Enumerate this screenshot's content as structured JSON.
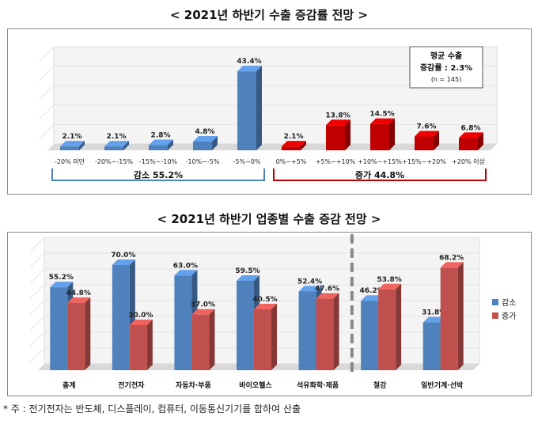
{
  "chart1_title": "< 2021년 하반기 수출 증감률 전망 >",
  "chart2_title": "< 2021년 하반기 업종별 수출 증감 전망 >",
  "note": "* 주 : 전기전자는 반도체, 디스플레이, 컴퓨터, 이동통신기기를 합하여 산출",
  "colors": {
    "blue": "#4F81BD",
    "red": "#C00000",
    "red2": "#C0504D",
    "bracket_blue": "#4F81BD",
    "bracket_red": "#C00000"
  },
  "chart_data": [
    {
      "type": "bar",
      "categories": [
        "-20% 미만",
        "-20%~-15%",
        "-15%~-10%",
        "-10%~-5%",
        "-5%~0%",
        "0%~+5%",
        "+5%~+10%",
        "+10%~+15%",
        "+15%~+20%",
        "+20% 이상"
      ],
      "values": [
        2.1,
        2.1,
        2.8,
        4.8,
        43.4,
        2.1,
        13.8,
        14.5,
        7.6,
        6.8
      ],
      "data_labels": [
        "2.1%",
        "2.1%",
        "2.8%",
        "4.8%",
        "43.4%",
        "2.1%",
        "13.8%",
        "14.5%",
        "7.6%",
        "6.8%"
      ],
      "bar_colors": [
        "blue",
        "blue",
        "blue",
        "blue",
        "blue",
        "red",
        "red",
        "red",
        "red",
        "red"
      ],
      "ylim": [
        0,
        50
      ],
      "groups": [
        {
          "label": "감소 55.2%",
          "from": 0,
          "to": 4,
          "color": "blue"
        },
        {
          "label": "증가 44.8%",
          "from": 5,
          "to": 9,
          "color": "red"
        }
      ],
      "annotation": [
        "평균 수출",
        "증감률 : 2.3%",
        "(n = 145)"
      ],
      "grid": true
    },
    {
      "type": "bar",
      "categories": [
        "총계",
        "전기전자",
        "자동차·부품",
        "바이오헬스",
        "석유화학·제품",
        "철강",
        "일반기계·선박"
      ],
      "series": [
        {
          "name": "감소",
          "values": [
            55.2,
            70.0,
            63.0,
            59.5,
            52.4,
            46.2,
            31.8
          ]
        },
        {
          "name": "증가",
          "values": [
            44.8,
            30.0,
            37.0,
            40.5,
            47.6,
            53.8,
            68.2
          ]
        }
      ],
      "data_labels": [
        [
          "55.2%",
          "70.0%",
          "63.0%",
          "59.5%",
          "52.4%",
          "46.2%",
          "31.8%"
        ],
        [
          "44.8%",
          "30.0%",
          "37.0%",
          "40.5%",
          "47.6%",
          "53.8%",
          "68.2%"
        ]
      ],
      "ylim": [
        0,
        80
      ],
      "legend_position": "right",
      "separator_after_index": 4,
      "grid": true
    }
  ]
}
